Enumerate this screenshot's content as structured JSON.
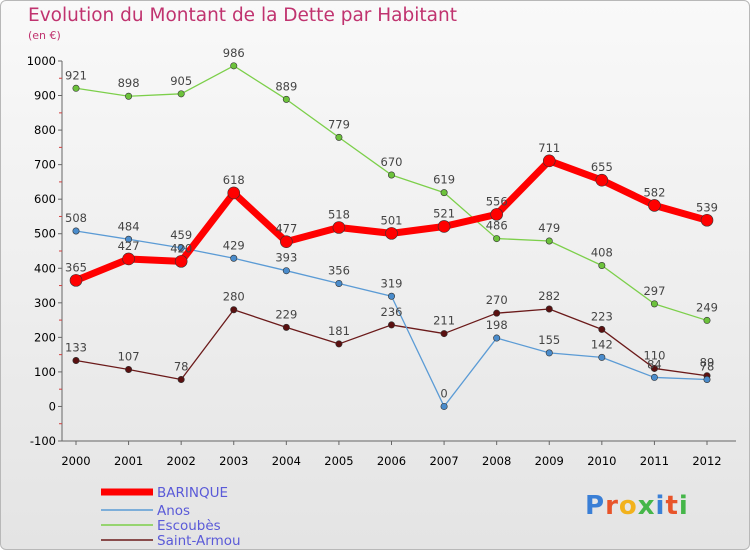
{
  "chart_data": {
    "type": "line",
    "title": "Evolution du Montant de la Dette par Habitant",
    "subtitle": "(en €)",
    "x": [
      "2000",
      "2001",
      "2002",
      "2003",
      "2004",
      "2005",
      "2006",
      "2007",
      "2008",
      "2009",
      "2010",
      "2011",
      "2012"
    ],
    "ylim": [
      -100,
      1000
    ],
    "yticks": [
      -100,
      0,
      100,
      200,
      300,
      400,
      500,
      600,
      700,
      800,
      900,
      1000
    ],
    "grid": false,
    "legend_position": "bottom-left",
    "series": [
      {
        "name": "BARINQUE",
        "color": "#ff0000",
        "values": [
          365,
          427,
          420,
          618,
          477,
          518,
          501,
          521,
          556,
          711,
          655,
          582,
          539
        ]
      },
      {
        "name": "Anos",
        "color": "#5b9bd5",
        "values": [
          508,
          484,
          459,
          429,
          393,
          356,
          319,
          0,
          198,
          155,
          142,
          84,
          78
        ]
      },
      {
        "name": "Escoubès",
        "color": "#7ccf4a",
        "values": [
          921,
          898,
          905,
          986,
          889,
          779,
          670,
          619,
          486,
          479,
          408,
          297,
          249
        ]
      },
      {
        "name": "Saint-Armou",
        "color": "#6b1a1a",
        "values": [
          133,
          107,
          78,
          280,
          229,
          181,
          236,
          211,
          270,
          282,
          223,
          110,
          89
        ]
      }
    ]
  },
  "branding": {
    "logo_text": "Proxiti",
    "logo_colors": [
      "#3a7fd6",
      "#e8542a",
      "#f2b21c",
      "#45b649",
      "#3a7fd6",
      "#e8542a",
      "#45b649"
    ]
  }
}
